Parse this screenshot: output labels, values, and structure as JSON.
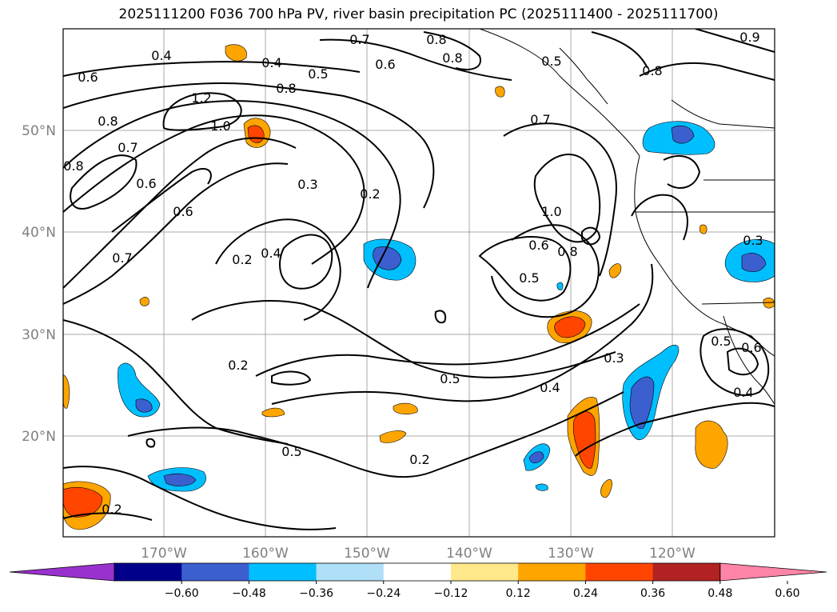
{
  "title": "2025111200 F036 700 hPa PV, river basin precipitation PC (2025111400 - 2025111700)",
  "lat_labels": [
    "50°N",
    "40°N",
    "30°N",
    "20°N"
  ],
  "lon_labels": [
    "170°W",
    "160°W",
    "150°W",
    "140°W",
    "130°W",
    "120°W"
  ],
  "colorbar": {
    "ticks": [
      "−0.60",
      "−0.48",
      "−0.36",
      "−0.24",
      "−0.12",
      "0.12",
      "0.24",
      "0.36",
      "0.48",
      "0.60"
    ],
    "colors": [
      "#9932CC",
      "#00008B",
      "#3C5FD0",
      "#00BFFF",
      "#B0E0F8",
      "#FFFFFF",
      "#FFE98A",
      "#FFA500",
      "#FF4500",
      "#B22222",
      "#FF85A8"
    ]
  },
  "contour_labels": [
    "0.4",
    "0.6",
    "0.8",
    "0.7",
    "1.2",
    "1.0",
    "0.8",
    "0.5",
    "0.4",
    "0.8",
    "0.7",
    "0.6",
    "0.8",
    "0.8",
    "0.8",
    "0.6",
    "0.7",
    "0.3",
    "0.2",
    "0.6",
    "0.7",
    "0.2",
    "0.4",
    "1.0",
    "0.6",
    "0.8",
    "0.5",
    "0.2",
    "0.5",
    "0.4",
    "0.3",
    "0.5",
    "0.2",
    "0.2",
    "0.6",
    "0.5",
    "0.4",
    "0.3",
    "0.5",
    "0.9"
  ]
}
